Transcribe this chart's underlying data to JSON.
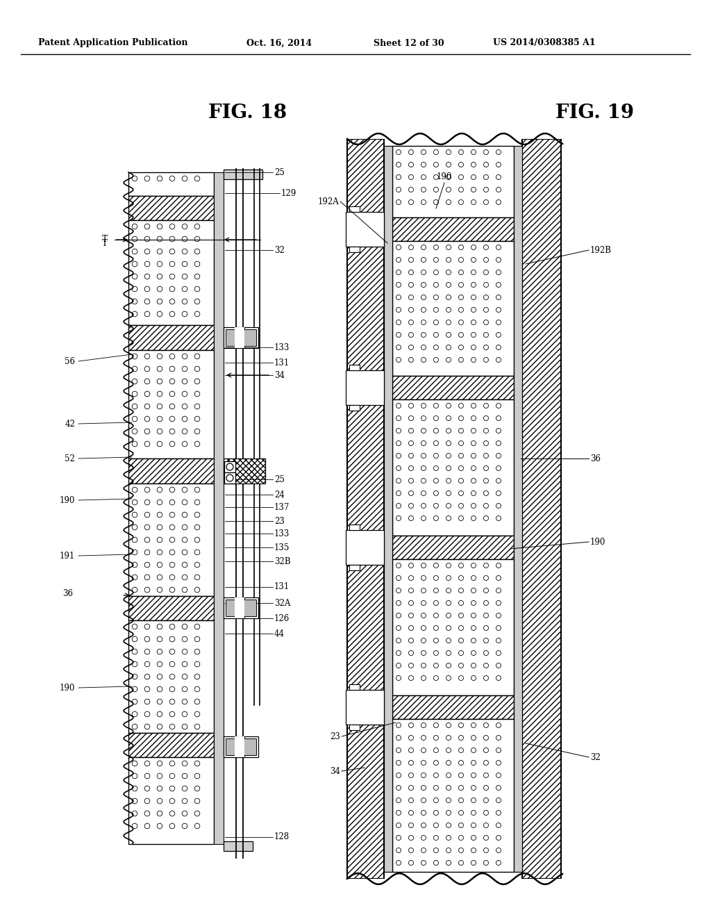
{
  "background_color": "#ffffff",
  "header_text": "Patent Application Publication",
  "header_date": "Oct. 16, 2014",
  "header_sheet": "Sheet 12 of 30",
  "header_patent": "US 2014/0308385 A1",
  "fig18_label": "FIG. 18",
  "fig19_label": "FIG. 19",
  "fig18_right_labels": [
    [
      395,
      248,
      "25"
    ],
    [
      405,
      278,
      "129"
    ],
    [
      395,
      360,
      "32"
    ],
    [
      395,
      500,
      "133"
    ],
    [
      395,
      522,
      "131"
    ],
    [
      395,
      540,
      "34"
    ],
    [
      395,
      690,
      "25"
    ],
    [
      395,
      712,
      "24"
    ],
    [
      395,
      730,
      "137"
    ],
    [
      395,
      750,
      "23"
    ],
    [
      395,
      768,
      "133"
    ],
    [
      395,
      788,
      "135"
    ],
    [
      395,
      808,
      "32B"
    ],
    [
      395,
      845,
      "131"
    ],
    [
      395,
      868,
      "32A"
    ],
    [
      395,
      890,
      "126"
    ],
    [
      395,
      912,
      "44"
    ],
    [
      395,
      1205,
      "128"
    ]
  ],
  "fig18_left_labels": [
    [
      155,
      350,
      "T"
    ],
    [
      108,
      520,
      "56"
    ],
    [
      108,
      610,
      "42"
    ],
    [
      108,
      660,
      "52"
    ],
    [
      108,
      720,
      "190"
    ],
    [
      108,
      800,
      "191"
    ],
    [
      105,
      855,
      "36"
    ],
    [
      108,
      990,
      "190"
    ]
  ],
  "fig19_labels": [
    [
      488,
      290,
      "192A",
      "right"
    ],
    [
      850,
      360,
      "192B",
      "left"
    ],
    [
      850,
      660,
      "36",
      "left"
    ],
    [
      850,
      780,
      "190",
      "left"
    ],
    [
      490,
      1060,
      "23",
      "right"
    ],
    [
      490,
      1110,
      "34",
      "right"
    ],
    [
      850,
      1090,
      "32",
      "left"
    ],
    [
      640,
      255,
      "190",
      "center"
    ]
  ]
}
